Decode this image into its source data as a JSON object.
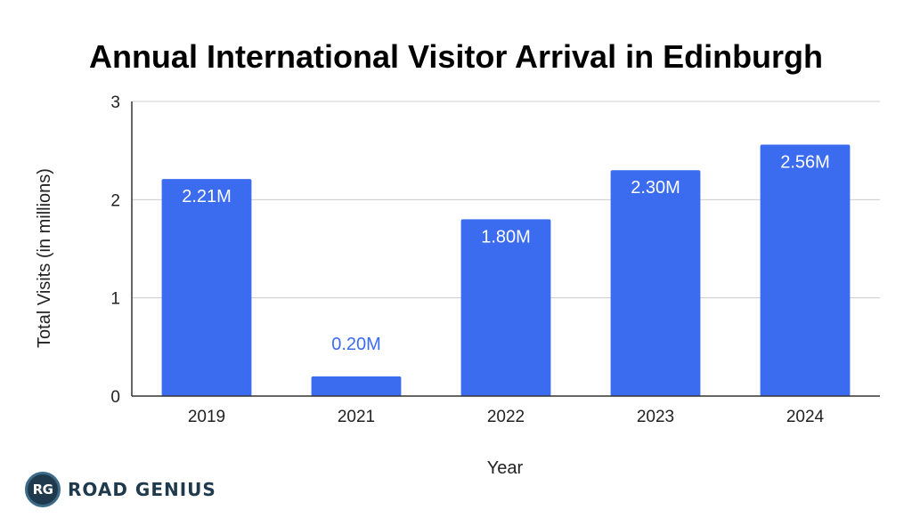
{
  "chart_data": {
    "type": "bar",
    "title": "Annual International Visitor Arrival in Edinburgh",
    "xlabel": "Year",
    "ylabel": "Total Visits (in millions)",
    "categories": [
      "2019",
      "2021",
      "2022",
      "2023",
      "2024"
    ],
    "values": [
      2.21,
      0.2,
      1.8,
      2.3,
      2.56
    ],
    "data_labels": [
      "2.21M",
      "0.20M",
      "1.80M",
      "2.30M",
      "2.56M"
    ],
    "ylim": [
      0,
      3
    ],
    "yticks": [
      0,
      1,
      2,
      3
    ],
    "grid": true,
    "legend": "none",
    "bar_color": "#3b6cf0",
    "label_inside_color": "#ffffff",
    "label_outside_color": "#3b6cf0"
  },
  "brand": {
    "logo_initials": "RG",
    "logo_text": "ROAD GENIUS"
  }
}
